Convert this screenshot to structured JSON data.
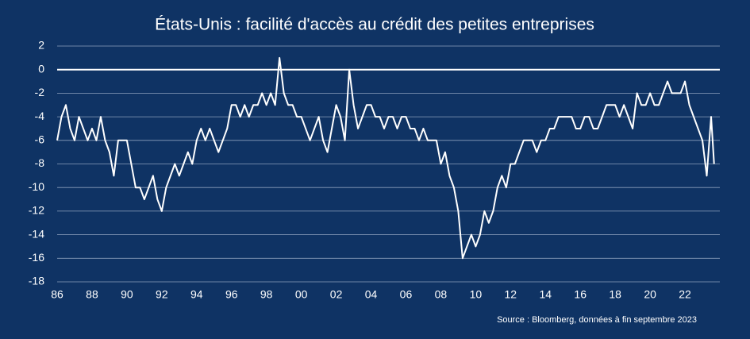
{
  "chart_data": {
    "type": "line",
    "title": "États-Unis : facilité d'accès au crédit des petites entreprises",
    "source": "Source : Bloomberg, données à fin septembre 2023",
    "color": "#ffffff",
    "grid": true,
    "x": [
      1986,
      1986.25,
      1986.5,
      1986.75,
      1987,
      1987.25,
      1987.5,
      1987.75,
      1988,
      1988.25,
      1988.5,
      1988.75,
      1989,
      1989.25,
      1989.5,
      1989.75,
      1990,
      1990.25,
      1990.5,
      1990.75,
      1991,
      1991.25,
      1991.5,
      1991.75,
      1992,
      1992.25,
      1992.5,
      1992.75,
      1993,
      1993.25,
      1993.5,
      1993.75,
      1994,
      1994.25,
      1994.5,
      1994.75,
      1995,
      1995.25,
      1995.5,
      1995.75,
      1996,
      1996.25,
      1996.5,
      1996.75,
      1997,
      1997.25,
      1997.5,
      1997.75,
      1998,
      1998.25,
      1998.5,
      1998.75,
      1999,
      1999.25,
      1999.5,
      1999.75,
      2000,
      2000.25,
      2000.5,
      2000.75,
      2001,
      2001.25,
      2001.5,
      2001.75,
      2002,
      2002.25,
      2002.5,
      2002.75,
      2003,
      2003.25,
      2003.5,
      2003.75,
      2004,
      2004.25,
      2004.5,
      2004.75,
      2005,
      2005.25,
      2005.5,
      2005.75,
      2006,
      2006.25,
      2006.5,
      2006.75,
      2007,
      2007.25,
      2007.5,
      2007.75,
      2008,
      2008.25,
      2008.5,
      2008.75,
      2009,
      2009.25,
      2009.5,
      2009.75,
      2010,
      2010.25,
      2010.5,
      2010.75,
      2011,
      2011.25,
      2011.5,
      2011.75,
      2012,
      2012.25,
      2012.5,
      2012.75,
      2013,
      2013.25,
      2013.5,
      2013.75,
      2014,
      2014.25,
      2014.5,
      2014.75,
      2015,
      2015.25,
      2015.5,
      2015.75,
      2016,
      2016.25,
      2016.5,
      2016.75,
      2017,
      2017.25,
      2017.5,
      2017.75,
      2018,
      2018.25,
      2018.5,
      2018.75,
      2019,
      2019.25,
      2019.5,
      2019.75,
      2020,
      2020.25,
      2020.5,
      2020.75,
      2021,
      2021.25,
      2021.5,
      2021.75,
      2022,
      2022.25,
      2022.5,
      2022.75,
      2023,
      2023.25,
      2023.5,
      2023.67
    ],
    "values": [
      -6,
      -4,
      -3,
      -5,
      -6,
      -4,
      -5,
      -6,
      -5,
      -6,
      -4,
      -6,
      -7,
      -9,
      -6,
      -6,
      -6,
      -8,
      -10,
      -10,
      -11,
      -10,
      -9,
      -11,
      -12,
      -10,
      -9,
      -8,
      -9,
      -8,
      -7,
      -8,
      -6,
      -5,
      -6,
      -5,
      -6,
      -7,
      -6,
      -5,
      -3,
      -3,
      -4,
      -3,
      -4,
      -3,
      -3,
      -2,
      -3,
      -2,
      -3,
      1,
      -2,
      -3,
      -3,
      -4,
      -4,
      -5,
      -6,
      -5,
      -4,
      -6,
      -7,
      -5,
      -3,
      -4,
      -6,
      0,
      -3,
      -5,
      -4,
      -3,
      -3,
      -4,
      -4,
      -5,
      -4,
      -4,
      -5,
      -4,
      -4,
      -5,
      -5,
      -6,
      -5,
      -6,
      -6,
      -6,
      -8,
      -7,
      -9,
      -10,
      -12,
      -16,
      -15,
      -14,
      -15,
      -14,
      -12,
      -13,
      -12,
      -10,
      -9,
      -10,
      -8,
      -8,
      -7,
      -6,
      -6,
      -6,
      -7,
      -6,
      -6,
      -5,
      -5,
      -4,
      -4,
      -4,
      -4,
      -5,
      -5,
      -4,
      -4,
      -5,
      -5,
      -4,
      -3,
      -3,
      -3,
      -4,
      -3,
      -4,
      -5,
      -2,
      -3,
      -3,
      -2,
      -3,
      -3,
      -2,
      -1,
      -2,
      -2,
      -2,
      -1,
      -3,
      -4,
      -5,
      -6,
      -9,
      -4,
      -8
    ],
    "xlim": [
      1986,
      2024
    ],
    "xticks": [
      {
        "value": 1986,
        "label": "86"
      },
      {
        "value": 1988,
        "label": "88"
      },
      {
        "value": 1990,
        "label": "90"
      },
      {
        "value": 1992,
        "label": "92"
      },
      {
        "value": 1994,
        "label": "94"
      },
      {
        "value": 1996,
        "label": "96"
      },
      {
        "value": 1998,
        "label": "98"
      },
      {
        "value": 2000,
        "label": "00"
      },
      {
        "value": 2002,
        "label": "02"
      },
      {
        "value": 2004,
        "label": "04"
      },
      {
        "value": 2006,
        "label": "06"
      },
      {
        "value": 2008,
        "label": "08"
      },
      {
        "value": 2010,
        "label": "10"
      },
      {
        "value": 2012,
        "label": "12"
      },
      {
        "value": 2014,
        "label": "14"
      },
      {
        "value": 2016,
        "label": "16"
      },
      {
        "value": 2018,
        "label": "18"
      },
      {
        "value": 2020,
        "label": "20"
      },
      {
        "value": 2022,
        "label": "22"
      }
    ],
    "ylim": [
      -18,
      2
    ],
    "yticks": [
      -18,
      -16,
      -14,
      -12,
      -10,
      -8,
      -6,
      -4,
      -2,
      0,
      2
    ]
  }
}
